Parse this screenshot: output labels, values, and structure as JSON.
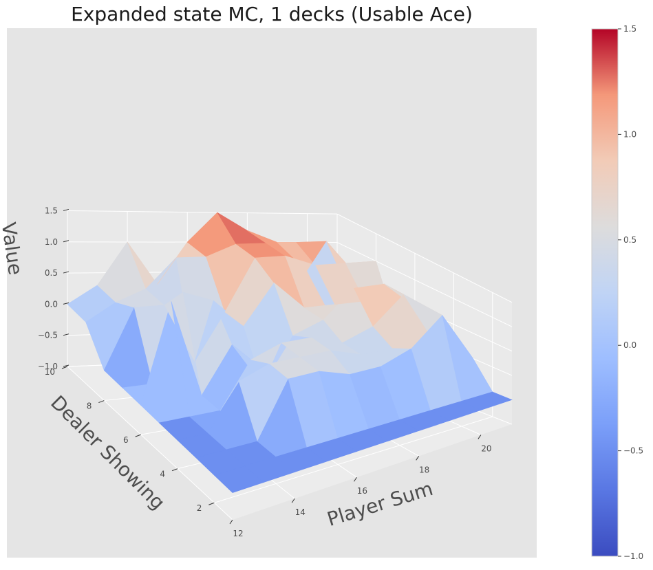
{
  "chart_data": {
    "type": "surface3d",
    "title": "Expanded state MC, 1 decks (Usable Ace)",
    "xlabel": "Player Sum",
    "ylabel": "Dealer Showing",
    "zlabel": "Value",
    "xlim": [
      12,
      21
    ],
    "ylim": [
      1,
      10
    ],
    "zlim": [
      -1.0,
      1.5
    ],
    "x_ticks": [
      "12",
      "14",
      "16",
      "18",
      "20"
    ],
    "y_ticks": [
      "2",
      "4",
      "6",
      "8",
      "10"
    ],
    "z_ticks": [
      "−1.0",
      "−0.5",
      "0.0",
      "0.5",
      "1.0",
      "1.5"
    ],
    "colorbar": {
      "colormap": "coolwarm",
      "range": [
        -1.0,
        1.5
      ],
      "ticks": [
        "−1.0",
        "−0.5",
        "0.0",
        "0.5",
        "1.0",
        "1.5"
      ]
    },
    "x": [
      12,
      13,
      14,
      15,
      16,
      17,
      18,
      19,
      20,
      21
    ],
    "y": [
      1,
      2,
      3,
      4,
      5,
      6,
      7,
      8,
      9,
      10
    ],
    "z": [
      [
        -0.5,
        -0.5,
        -0.5,
        -0.5,
        -0.5,
        -0.5,
        -0.5,
        -0.5,
        -0.5,
        -0.5
      ],
      [
        -0.5,
        -0.5,
        -0.5,
        -0.5,
        -0.5,
        -0.5,
        -0.5,
        -0.5,
        -0.5,
        -0.5
      ],
      [
        -0.5,
        -0.5,
        -0.5,
        0.5,
        0.5,
        0.3,
        0.3,
        0.5,
        1.0,
        0.0
      ],
      [
        -0.5,
        -0.5,
        0.3,
        0.5,
        0.5,
        0.5,
        0.3,
        0.3,
        1.0,
        0.1
      ],
      [
        -0.5,
        -0.5,
        -0.5,
        0.3,
        0.5,
        0.5,
        0.3,
        0.5,
        1.0,
        0.0
      ],
      [
        -0.5,
        1.2,
        -0.5,
        0.3,
        -0.5,
        0.3,
        0.5,
        1.0,
        1.0,
        0.5
      ],
      [
        -0.5,
        -0.5,
        1.0,
        0.8,
        0.3,
        1.0,
        0.5,
        0.5,
        0.5,
        0.0
      ],
      [
        -0.5,
        0.5,
        0.5,
        -0.5,
        0.3,
        1.2,
        1.2,
        1.0,
        1.0,
        1.0
      ],
      [
        0.0,
        0.3,
        0.5,
        1.0,
        1.0,
        1.2,
        1.2,
        1.2,
        1.2,
        0.0
      ],
      [
        0.0,
        0.3,
        1.0,
        0.3,
        1.0,
        1.5,
        1.2,
        1.0,
        0.5,
        -0.5
      ]
    ]
  }
}
